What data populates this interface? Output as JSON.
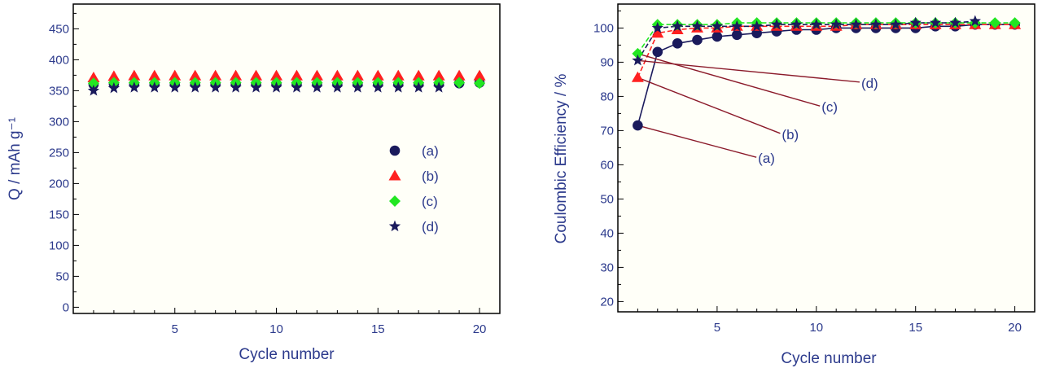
{
  "colors": {
    "a": "#1a1a5c",
    "b": "#ff2020",
    "c": "#22e622",
    "d": "#1a1a5c",
    "text": "#2c3a8c"
  },
  "chart_data": [
    {
      "type": "scatter",
      "xlabel": "Cycle number",
      "ylabel": "Q / mAh g⁻¹",
      "xlim": [
        0,
        21
      ],
      "ylim": [
        -10,
        490
      ],
      "xticks": [
        5,
        10,
        15,
        20
      ],
      "yticks": [
        0,
        50,
        100,
        150,
        200,
        250,
        300,
        350,
        400,
        450
      ],
      "legend_position": "center-right",
      "grid": false,
      "series": [
        {
          "key": "a",
          "name": "(a)",
          "marker": "circle",
          "x": [
            1,
            2,
            3,
            4,
            5,
            6,
            7,
            8,
            9,
            10,
            11,
            12,
            13,
            14,
            15,
            16,
            17,
            18,
            19,
            20
          ],
          "y": [
            360,
            361,
            361,
            361,
            361,
            361,
            361,
            361,
            361,
            361,
            361,
            361,
            361,
            361,
            361,
            361,
            361,
            361,
            362,
            363
          ]
        },
        {
          "key": "b",
          "name": "(b)",
          "marker": "triangle",
          "x": [
            1,
            2,
            3,
            4,
            5,
            6,
            7,
            8,
            9,
            10,
            11,
            12,
            13,
            14,
            15,
            16,
            17,
            18,
            19,
            20
          ],
          "y": [
            371,
            373,
            374,
            374,
            374,
            374,
            374,
            374,
            374,
            374,
            374,
            374,
            374,
            374,
            374,
            374,
            374,
            374,
            374,
            374
          ]
        },
        {
          "key": "c",
          "name": "(c)",
          "marker": "diamond",
          "x": [
            1,
            2,
            3,
            4,
            5,
            6,
            7,
            8,
            9,
            10,
            11,
            12,
            13,
            14,
            15,
            16,
            17,
            18,
            19,
            20
          ],
          "y": [
            362,
            363,
            363,
            363,
            363,
            363,
            363,
            363,
            363,
            363,
            363,
            363,
            363,
            363,
            363,
            363,
            363,
            363,
            363,
            362
          ]
        },
        {
          "key": "d",
          "name": "(d)",
          "marker": "star",
          "x": [
            1,
            2,
            3,
            4,
            5,
            6,
            7,
            8,
            9,
            10,
            11,
            12,
            13,
            14,
            15,
            16,
            17,
            18
          ],
          "y": [
            350,
            354,
            355,
            355,
            355,
            355,
            355,
            355,
            355,
            355,
            355,
            355,
            355,
            355,
            355,
            355,
            355,
            355
          ]
        }
      ]
    },
    {
      "type": "line",
      "xlabel": "Cycle number",
      "ylabel": "Coulombic Efficiency / %",
      "xlim": [
        0,
        21
      ],
      "ylim": [
        17,
        107
      ],
      "xticks": [
        5,
        10,
        15,
        20
      ],
      "yticks": [
        20,
        30,
        40,
        50,
        60,
        70,
        80,
        90,
        100
      ],
      "grid": false,
      "series": [
        {
          "key": "a",
          "name": "(a)",
          "marker": "circle",
          "x": [
            1,
            2,
            3,
            4,
            5,
            6,
            7,
            8,
            9,
            10,
            11,
            12,
            13,
            14,
            15,
            16,
            17,
            18,
            19,
            20
          ],
          "y": [
            71.5,
            93,
            95.5,
            96.5,
            97.5,
            98,
            98.5,
            99,
            99.5,
            99.5,
            100,
            100,
            100,
            100,
            100,
            100.5,
            100.5,
            101,
            101,
            101
          ]
        },
        {
          "key": "b",
          "name": "(b)",
          "marker": "triangle",
          "x": [
            1,
            2,
            3,
            4,
            5,
            6,
            7,
            8,
            9,
            10,
            11,
            12,
            13,
            14,
            15,
            16,
            17,
            18,
            19,
            20
          ],
          "y": [
            85.5,
            98.5,
            99.5,
            100,
            100,
            100.5,
            100.5,
            100.5,
            100.5,
            100.5,
            100.5,
            101,
            101,
            101,
            101,
            101,
            101,
            101,
            101,
            101
          ]
        },
        {
          "key": "c",
          "name": "(c)",
          "marker": "diamond",
          "x": [
            1,
            2,
            3,
            4,
            5,
            6,
            7,
            8,
            9,
            10,
            11,
            12,
            13,
            14,
            15,
            16,
            17,
            18,
            19,
            20
          ],
          "y": [
            92.5,
            101,
            101,
            101,
            101,
            101.5,
            101.5,
            101.5,
            101.5,
            101.5,
            101.5,
            101.5,
            101.5,
            101.5,
            101.5,
            101.5,
            101.5,
            101.5,
            101.5,
            101.5
          ]
        },
        {
          "key": "d",
          "name": "(d)",
          "marker": "star",
          "x": [
            1,
            2,
            3,
            4,
            5,
            6,
            7,
            8,
            9,
            10,
            11,
            12,
            13,
            14,
            15,
            16,
            17,
            18
          ],
          "y": [
            90.5,
            100,
            100.5,
            100.5,
            100.5,
            100.5,
            100.5,
            101,
            101,
            101,
            101,
            101,
            101,
            101,
            101.5,
            101.5,
            101.5,
            102
          ]
        }
      ],
      "annotations": [
        {
          "series": "a",
          "text": "(a)",
          "point": [
            1,
            71.5
          ],
          "label": [
            7.8,
            61
          ]
        },
        {
          "series": "b",
          "text": "(b)",
          "point": [
            1,
            85.5
          ],
          "label": [
            9.0,
            68
          ]
        },
        {
          "series": "c",
          "text": "(c)",
          "point": [
            1,
            92.5
          ],
          "label": [
            11.0,
            76
          ]
        },
        {
          "series": "d",
          "text": "(d)",
          "point": [
            1,
            90.5
          ],
          "label": [
            13.0,
            83
          ]
        }
      ]
    }
  ]
}
